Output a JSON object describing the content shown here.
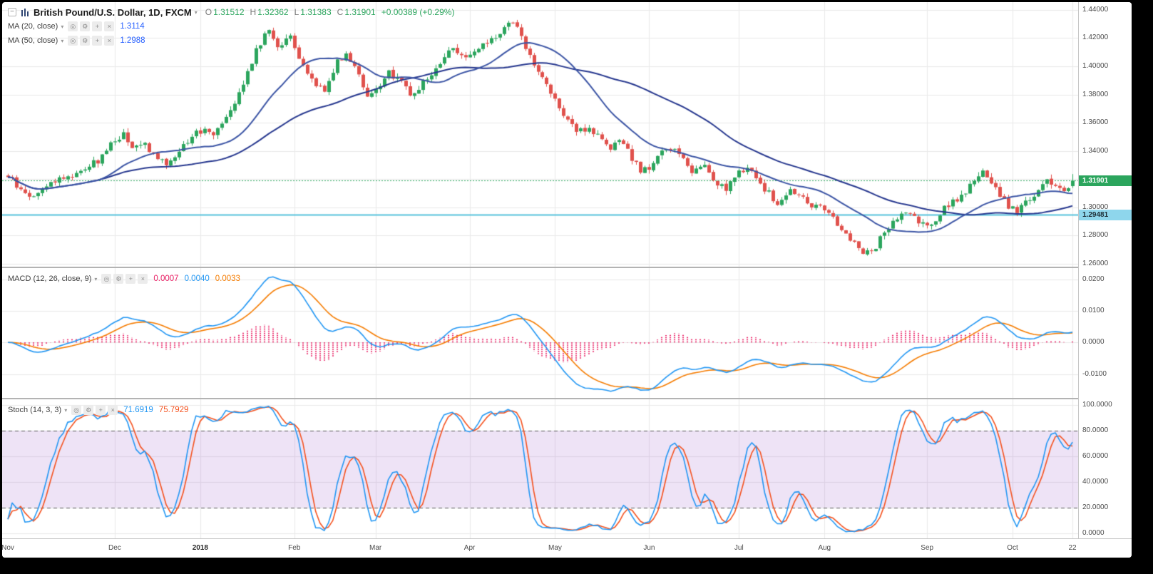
{
  "header": {
    "title": "British Pound/U.S. Dollar, 1D, FXCM",
    "ohlc": {
      "o_label": "O",
      "o": "1.31512",
      "h_label": "H",
      "h": "1.32362",
      "l_label": "L",
      "l": "1.31383",
      "c_label": "C",
      "c": "1.31901"
    },
    "change": "+0.00389 (+0.29%)"
  },
  "legend": {
    "ma20": {
      "label": "MA (20, close)",
      "value": "1.3114"
    },
    "ma50": {
      "label": "MA (50, close)",
      "value": "1.2988"
    },
    "macd": {
      "label": "MACD (12, 26, close, 9)",
      "values": [
        "0.0007",
        "0.0040",
        "0.0033"
      ]
    },
    "stoch": {
      "label": "Stoch (14, 3, 3)",
      "values": [
        "71.6919",
        "75.7929"
      ]
    }
  },
  "icons": {
    "collapse": "−",
    "dropdown": "▾",
    "eye": "◎",
    "gear": "⚙",
    "plus": "+",
    "close": "×"
  },
  "colors": {
    "up": "#2BA55D",
    "down": "#E0514C",
    "ma20_line": "#3C55A5",
    "ma50_line": "#27388F",
    "macd_line": "#2196F3",
    "macd_signal": "#F57C00",
    "macd_hist": "#E91E63",
    "stoch_k": "#2196F3",
    "stoch_d": "#F4511E",
    "band_fill": "rgba(150,80,200,0.16)",
    "band_border": "#5a5a5a",
    "grid": "#e9e9e9",
    "axis_text": "#4a4a4a",
    "last_price": "#2BA55D",
    "horizontal_line": "#56C1DC"
  },
  "chart_data": {
    "type": "candlestick",
    "symbol": "British Pound/U.S. Dollar",
    "interval": "1D",
    "exchange": "FXCM",
    "candles_count": 250,
    "last_candle": {
      "o": 1.31512,
      "h": 1.32362,
      "l": 1.31383,
      "c": 1.31901
    },
    "estimated_close_keypoints": [
      [
        0,
        1.3225
      ],
      [
        3,
        1.3115
      ],
      [
        6,
        1.3075
      ],
      [
        9,
        1.316
      ],
      [
        12,
        1.3205
      ],
      [
        15,
        1.323
      ],
      [
        18,
        1.328
      ],
      [
        21,
        1.333
      ],
      [
        24,
        1.345
      ],
      [
        27,
        1.352
      ],
      [
        29,
        1.341
      ],
      [
        32,
        1.3455
      ],
      [
        35,
        1.333
      ],
      [
        37,
        1.331
      ],
      [
        39,
        1.337
      ],
      [
        43,
        1.351
      ],
      [
        46,
        1.356
      ],
      [
        48,
        1.353
      ],
      [
        52,
        1.37
      ],
      [
        55,
        1.387
      ],
      [
        58,
        1.412
      ],
      [
        61,
        1.426
      ],
      [
        63,
        1.415
      ],
      [
        66,
        1.42
      ],
      [
        69,
        1.399
      ],
      [
        72,
        1.388
      ],
      [
        74,
        1.383
      ],
      [
        77,
        1.404
      ],
      [
        79,
        1.409
      ],
      [
        82,
        1.395
      ],
      [
        84,
        1.379
      ],
      [
        87,
        1.385
      ],
      [
        89,
        1.395
      ],
      [
        92,
        1.39
      ],
      [
        94,
        1.38
      ],
      [
        97,
        1.388
      ],
      [
        99,
        1.394
      ],
      [
        102,
        1.407
      ],
      [
        104,
        1.414
      ],
      [
        107,
        1.406
      ],
      [
        109,
        1.409
      ],
      [
        112,
        1.417
      ],
      [
        115,
        1.424
      ],
      [
        118,
        1.432
      ],
      [
        120,
        1.421
      ],
      [
        123,
        1.4
      ],
      [
        125,
        1.392
      ],
      [
        128,
        1.378
      ],
      [
        130,
        1.363
      ],
      [
        133,
        1.355
      ],
      [
        136,
        1.356
      ],
      [
        138,
        1.35
      ],
      [
        141,
        1.34
      ],
      [
        143,
        1.348
      ],
      [
        146,
        1.335
      ],
      [
        148,
        1.326
      ],
      [
        151,
        1.33
      ],
      [
        153,
        1.34
      ],
      [
        156,
        1.342
      ],
      [
        158,
        1.335
      ],
      [
        160,
        1.326
      ],
      [
        163,
        1.33
      ],
      [
        165,
        1.32
      ],
      [
        168,
        1.312
      ],
      [
        170,
        1.322
      ],
      [
        173,
        1.329
      ],
      [
        175,
        1.32
      ],
      [
        178,
        1.31
      ],
      [
        180,
        1.302
      ],
      [
        183,
        1.312
      ],
      [
        185,
        1.308
      ],
      [
        188,
        1.302
      ],
      [
        190,
        1.3
      ],
      [
        193,
        1.294
      ],
      [
        195,
        1.283
      ],
      [
        198,
        1.276
      ],
      [
        200,
        1.268
      ],
      [
        203,
        1.272
      ],
      [
        205,
        1.283
      ],
      [
        208,
        1.291
      ],
      [
        210,
        1.296
      ],
      [
        213,
        1.29
      ],
      [
        215,
        1.285
      ],
      [
        218,
        1.296
      ],
      [
        220,
        1.302
      ],
      [
        223,
        1.308
      ],
      [
        225,
        1.315
      ],
      [
        228,
        1.327
      ],
      [
        230,
        1.318
      ],
      [
        232,
        1.307
      ],
      [
        234,
        1.301
      ],
      [
        236,
        1.297
      ],
      [
        238,
        1.305
      ],
      [
        241,
        1.312
      ],
      [
        243,
        1.318
      ],
      [
        245,
        1.315
      ],
      [
        247,
        1.311
      ],
      [
        249,
        1.31901
      ]
    ],
    "price_axis": {
      "min": 1.258,
      "max": 1.4455,
      "ticks": [
        {
          "v": 1.44,
          "label": "1.44000"
        },
        {
          "v": 1.42,
          "label": "1.42000"
        },
        {
          "v": 1.4,
          "label": "1.40000"
        },
        {
          "v": 1.38,
          "label": "1.38000"
        },
        {
          "v": 1.36,
          "label": "1.36000"
        },
        {
          "v": 1.34,
          "label": "1.34000"
        },
        {
          "v": 1.32,
          "label": "1.32000"
        },
        {
          "v": 1.3,
          "label": "1.30000"
        },
        {
          "v": 1.28,
          "label": "1.28000"
        },
        {
          "v": 1.26,
          "label": "1.26000"
        }
      ]
    },
    "macd_axis": {
      "min": -0.0175,
      "max": 0.0235,
      "ticks": [
        {
          "v": 0.02,
          "label": "0.0200"
        },
        {
          "v": 0.01,
          "label": "0.0100"
        },
        {
          "v": 0,
          "label": "0.0000"
        },
        {
          "v": -0.01,
          "label": "-0.0100"
        }
      ]
    },
    "stoch_axis": {
      "min": -4,
      "max": 104.5,
      "ticks": [
        {
          "v": 100,
          "label": "100.0000"
        },
        {
          "v": 80,
          "label": "80.0000"
        },
        {
          "v": 60,
          "label": "60.0000"
        },
        {
          "v": 40,
          "label": "40.0000"
        },
        {
          "v": 20,
          "label": "20.0000"
        },
        {
          "v": 0,
          "label": "0.0000"
        }
      ]
    },
    "stoch_bands": {
      "upper": 80,
      "lower": 20
    },
    "price_lines": [
      {
        "name": "last-price",
        "label": "1.31901",
        "value": 1.31901,
        "style": "dashed",
        "line_color": "#2BA55D",
        "badge_bg": "#2BA55D",
        "badge_fg": "#FFFFFF"
      },
      {
        "name": "horizontal-line",
        "label": "1.29481",
        "value": 1.29481,
        "style": "solid",
        "line_color": "#56C1DC",
        "badge_bg": "#8ED6EC",
        "badge_fg": "#1c2b33"
      }
    ],
    "time_axis": {
      "ticks": [
        {
          "label": "Nov",
          "day": 0
        },
        {
          "label": "Dec",
          "day": 25
        },
        {
          "label": "2018",
          "day": 45,
          "bold": true
        },
        {
          "label": "Feb",
          "day": 67
        },
        {
          "label": "Mar",
          "day": 86
        },
        {
          "label": "Apr",
          "day": 108
        },
        {
          "label": "May",
          "day": 128
        },
        {
          "label": "Jun",
          "day": 150
        },
        {
          "label": "Jul",
          "day": 171
        },
        {
          "label": "Aug",
          "day": 191
        },
        {
          "label": "Sep",
          "day": 215
        },
        {
          "label": "Oct",
          "day": 235
        },
        {
          "label": "22",
          "day": 249
        }
      ]
    },
    "indicators": [
      {
        "name": "MA",
        "params": [
          20
        ],
        "last": 1.3114
      },
      {
        "name": "MA",
        "params": [
          50
        ],
        "last": 1.2988
      },
      {
        "name": "MACD",
        "params": [
          12,
          26,
          9
        ],
        "last": [
          0.0007,
          0.004,
          0.0033
        ]
      },
      {
        "name": "Stoch",
        "params": [
          14,
          3,
          3
        ],
        "last": [
          71.6919,
          75.7929
        ]
      }
    ]
  }
}
